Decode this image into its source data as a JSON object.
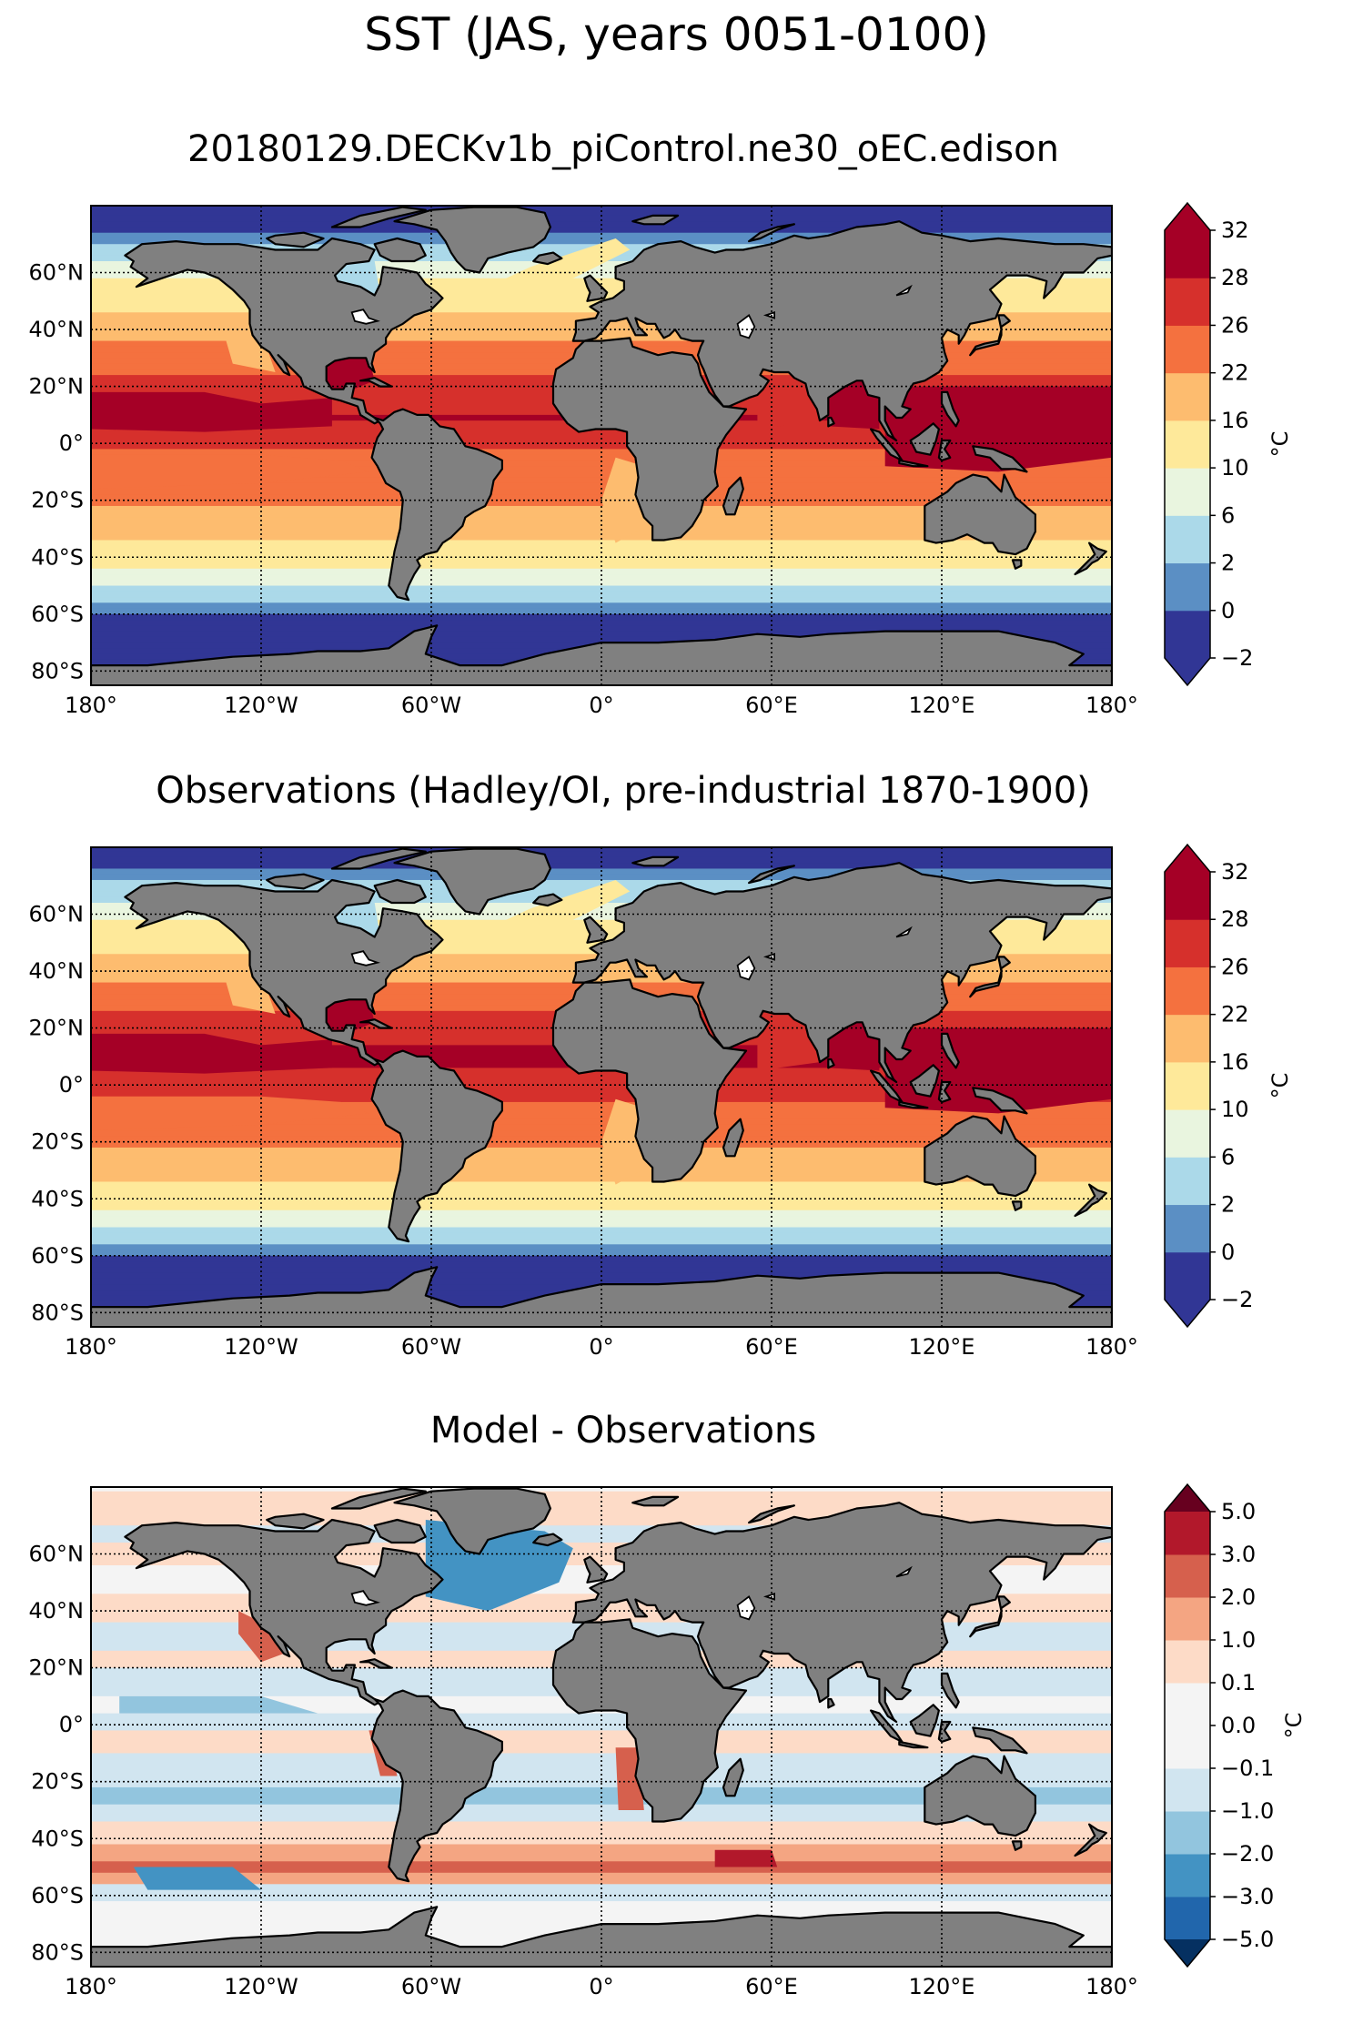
{
  "suptitle": "SST (JAS, years 0051-0100)",
  "chart_data": [
    {
      "type": "heatmap",
      "title": "20180129.DECKv1b_piControl.ne30_oEC.edison",
      "xlabel": "",
      "ylabel": "",
      "xlim": [
        -180,
        180
      ],
      "ylim": [
        -85,
        85
      ],
      "xticks": [
        -180,
        -120,
        -60,
        0,
        60,
        120,
        180
      ],
      "xtick_labels": [
        "180°",
        "120°W",
        "60°W",
        "0°",
        "60°E",
        "120°E",
        "180°"
      ],
      "yticks": [
        60,
        40,
        20,
        0,
        -20,
        -40,
        -60,
        -80
      ],
      "ytick_labels": [
        "60°N",
        "40°N",
        "20°N",
        "0°",
        "20°S",
        "40°S",
        "60°S",
        "80°S"
      ],
      "grid": true,
      "colorbar": {
        "levels": [
          -2,
          0,
          2,
          6,
          10,
          16,
          22,
          26,
          28,
          32
        ],
        "tick_labels": [
          "−2",
          "0",
          "2",
          "6",
          "10",
          "16",
          "22",
          "26",
          "28",
          "32"
        ],
        "colors": [
          "#313695",
          "#5b8fc4",
          "#abd9e9",
          "#e9f5df",
          "#fee99a",
          "#fdbc6f",
          "#f4713f",
          "#d6302c",
          "#a50026"
        ],
        "extend": "both",
        "unit": "°C"
      },
      "zonal_profile_approx": [
        {
          "lat": 80,
          "value": -1.5
        },
        {
          "lat": 70,
          "value": 2
        },
        {
          "lat": 60,
          "value": 9
        },
        {
          "lat": 50,
          "value": 14
        },
        {
          "lat": 40,
          "value": 20
        },
        {
          "lat": 30,
          "value": 25
        },
        {
          "lat": 20,
          "value": 27
        },
        {
          "lat": 10,
          "value": 28
        },
        {
          "lat": 0,
          "value": 26
        },
        {
          "lat": -10,
          "value": 24
        },
        {
          "lat": -20,
          "value": 22
        },
        {
          "lat": -30,
          "value": 18
        },
        {
          "lat": -40,
          "value": 12
        },
        {
          "lat": -50,
          "value": 5
        },
        {
          "lat": -60,
          "value": -1
        },
        {
          "lat": -70,
          "value": -1.8
        }
      ]
    },
    {
      "type": "heatmap",
      "title": "Observations (Hadley/OI, pre-industrial 1870-1900)",
      "xlabel": "",
      "ylabel": "",
      "xlim": [
        -180,
        180
      ],
      "ylim": [
        -85,
        85
      ],
      "xticks": [
        -180,
        -120,
        -60,
        0,
        60,
        120,
        180
      ],
      "xtick_labels": [
        "180°",
        "120°W",
        "60°W",
        "0°",
        "60°E",
        "120°E",
        "180°"
      ],
      "yticks": [
        60,
        40,
        20,
        0,
        -20,
        -40,
        -60,
        -80
      ],
      "ytick_labels": [
        "60°N",
        "40°N",
        "20°N",
        "0°",
        "20°S",
        "40°S",
        "60°S",
        "80°S"
      ],
      "grid": true,
      "colorbar": {
        "levels": [
          -2,
          0,
          2,
          6,
          10,
          16,
          22,
          26,
          28,
          32
        ],
        "tick_labels": [
          "−2",
          "0",
          "2",
          "6",
          "10",
          "16",
          "22",
          "26",
          "28",
          "32"
        ],
        "colors": [
          "#313695",
          "#5b8fc4",
          "#abd9e9",
          "#e9f5df",
          "#fee99a",
          "#fdbc6f",
          "#f4713f",
          "#d6302c",
          "#a50026"
        ],
        "extend": "both",
        "unit": "°C"
      },
      "zonal_profile_approx": [
        {
          "lat": 80,
          "value": -1.5
        },
        {
          "lat": 70,
          "value": 3
        },
        {
          "lat": 60,
          "value": 9
        },
        {
          "lat": 50,
          "value": 14
        },
        {
          "lat": 40,
          "value": 21
        },
        {
          "lat": 30,
          "value": 25
        },
        {
          "lat": 20,
          "value": 27.5
        },
        {
          "lat": 10,
          "value": 28.5
        },
        {
          "lat": 0,
          "value": 27
        },
        {
          "lat": -10,
          "value": 25
        },
        {
          "lat": -20,
          "value": 22
        },
        {
          "lat": -30,
          "value": 17
        },
        {
          "lat": -40,
          "value": 12
        },
        {
          "lat": -50,
          "value": 5
        },
        {
          "lat": -60,
          "value": -0.5
        },
        {
          "lat": -70,
          "value": -1.8
        }
      ]
    },
    {
      "type": "heatmap",
      "title": "Model - Observations",
      "xlabel": "",
      "ylabel": "",
      "xlim": [
        -180,
        180
      ],
      "ylim": [
        -85,
        85
      ],
      "xticks": [
        -180,
        -120,
        -60,
        0,
        60,
        120,
        180
      ],
      "xtick_labels": [
        "180°",
        "120°W",
        "60°W",
        "0°",
        "60°E",
        "120°E",
        "180°"
      ],
      "yticks": [
        60,
        40,
        20,
        0,
        -20,
        -40,
        -60,
        -80
      ],
      "ytick_labels": [
        "60°N",
        "40°N",
        "20°N",
        "0°",
        "20°S",
        "40°S",
        "60°S",
        "80°S"
      ],
      "grid": true,
      "colorbar": {
        "levels": [
          -5.0,
          -3.0,
          -2.0,
          -1.0,
          -0.1,
          0.0,
          0.1,
          1.0,
          2.0,
          3.0,
          5.0
        ],
        "tick_labels": [
          "−5.0",
          "−3.0",
          "−2.0",
          "−1.0",
          "−0.1",
          "0.0",
          "0.1",
          "1.0",
          "2.0",
          "3.0",
          "5.0"
        ],
        "colors": [
          "#2166ac",
          "#4393c3",
          "#92c5de",
          "#d1e5f0",
          "#f4f4f4",
          "#f4f4f4",
          "#fddbc7",
          "#f4a582",
          "#d6604d",
          "#b2182b"
        ],
        "extend": "both",
        "unit": "°C"
      }
    }
  ]
}
